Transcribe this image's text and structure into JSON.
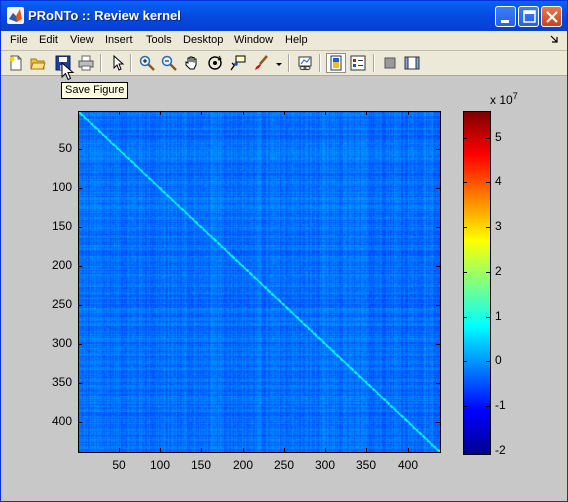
{
  "window": {
    "title": "PRoNTo :: Review kernel",
    "minimize_glyph": "minimize-icon",
    "maximize_glyph": "maximize-icon",
    "close_glyph": "close-icon"
  },
  "menu": {
    "items": [
      "File",
      "Edit",
      "View",
      "Insert",
      "Tools",
      "Desktop",
      "Window",
      "Help"
    ]
  },
  "toolbar": {
    "tooltip": "Save Figure",
    "buttons": [
      "new-figure-icon",
      "open-file-icon",
      "save-figure-icon",
      "print-figure-icon",
      "edit-plot-arrow-icon",
      "zoom-in-icon",
      "zoom-out-icon",
      "pan-hand-icon",
      "rotate-3d-icon",
      "data-cursor-icon",
      "brush-icon",
      "dropdown-arrow-icon",
      "link-plot-icon",
      "insert-colorbar-icon",
      "insert-legend-icon",
      "hide-plot-tools-icon",
      "show-plot-tools-icon"
    ]
  },
  "chart_data": {
    "type": "heatmap",
    "title": "",
    "xlabel": "",
    "ylabel": "",
    "xlim": [
      0.5,
      440.5
    ],
    "ylim": [
      0.5,
      440.5
    ],
    "y_reversed": true,
    "x_ticks": [
      50,
      100,
      150,
      200,
      250,
      300,
      350,
      400
    ],
    "y_ticks": [
      50,
      100,
      150,
      200,
      250,
      300,
      350,
      400
    ],
    "x_tick_labels": [
      "50",
      "100",
      "150",
      "200",
      "250",
      "300",
      "350",
      "400"
    ],
    "y_tick_labels": [
      "50",
      "100",
      "150",
      "200",
      "250",
      "300",
      "350",
      "400"
    ],
    "matrix_size": 440,
    "colormap": "jet",
    "colorbar": {
      "clim": [
        -2.1,
        5.6
      ],
      "ticks": [
        -2,
        -1,
        0,
        1,
        2,
        3,
        4,
        5
      ],
      "tick_labels": [
        "-2",
        "-1",
        "0",
        "1",
        "2",
        "3",
        "4",
        "5"
      ],
      "multiplier": "x 10",
      "exponent": "7"
    },
    "typical_offdiagonal_value": -0.3,
    "diagonal_value": 0.8
  }
}
